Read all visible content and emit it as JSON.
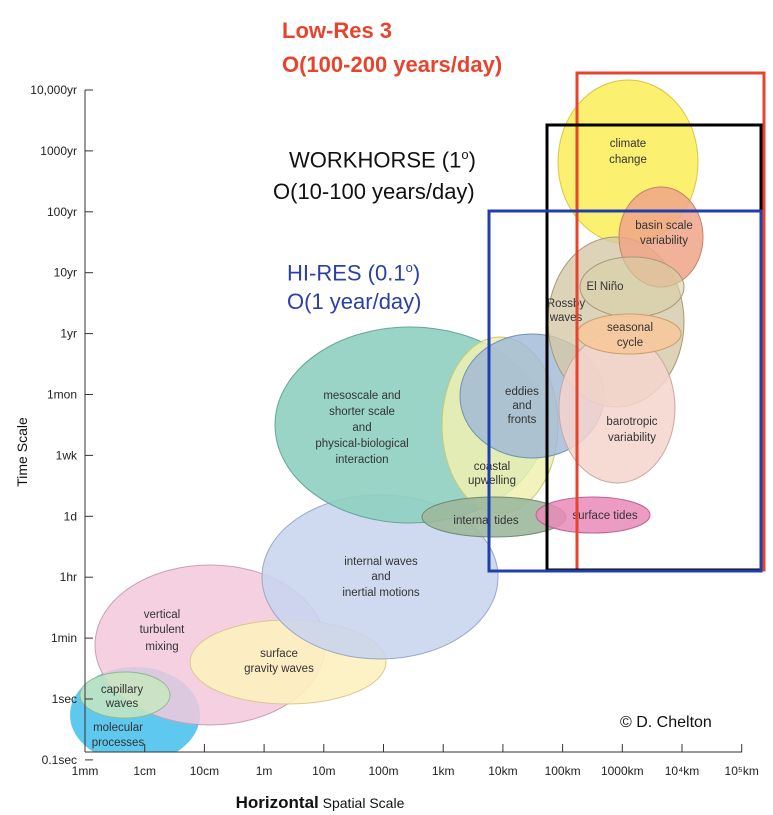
{
  "annotations": {
    "lowres_line1": "Low-Res 3",
    "lowres_line2": "O(100-200 years/day)",
    "workhorse_line1": "WORKHORSE (1",
    "workhorse_sup": "o",
    "workhorse_line1_end": ")",
    "workhorse_line2": "O(10-100 years/day)",
    "hires_line1": "HI-RES (0.1",
    "hires_sup": "o",
    "hires_line1_end": ")",
    "hires_line2": "O(1 year/day)"
  },
  "axes": {
    "y_title": "Time Scale",
    "x_title_bold": "Horizontal",
    "x_title_rest": " Spatial Scale",
    "y_ticks": [
      "10,000yr",
      "1000yr",
      "100yr",
      "10yr",
      "1yr",
      "1mon",
      "1wk",
      "1d",
      "1hr",
      "1min",
      "1sec",
      "0.1sec"
    ],
    "x_ticks": [
      "1mm",
      "1cm",
      "10cm",
      "1m",
      "10m",
      "100m",
      "1km",
      "10km",
      "100km",
      "1000km",
      "10⁴km",
      "10⁵km"
    ]
  },
  "credit": "© D. Chelton",
  "phenomena": [
    {
      "id": "molecular",
      "label": [
        "molecular",
        "processes"
      ],
      "color": "#5ec8ee"
    },
    {
      "id": "capillary",
      "label": [
        "capillary",
        "waves"
      ],
      "color": "#c8e6c0"
    },
    {
      "id": "turbulent",
      "label": [
        "vertical",
        "turbulent",
        "mixing"
      ],
      "color": "#f2c8dc"
    },
    {
      "id": "gravity",
      "label": [
        "surface",
        "gravity waves"
      ],
      "color": "#fdf0c0"
    },
    {
      "id": "internal-waves",
      "label": [
        "internal waves",
        "and",
        "inertial motions"
      ],
      "color": "#c8d4ee"
    },
    {
      "id": "mesoscale",
      "label": [
        "mesoscale and",
        "shorter scale",
        "and",
        "physical-biological",
        "interaction"
      ],
      "color": "#8fcfc0"
    },
    {
      "id": "upwelling",
      "label": [
        "coastal",
        "upwelling"
      ],
      "color": "#eef0b0"
    },
    {
      "id": "eddies",
      "label": [
        "eddies",
        "and",
        "fronts"
      ],
      "color": "#9fb8d8"
    },
    {
      "id": "internal-tides",
      "label": [
        "internal tides"
      ],
      "color": "#9cb89c"
    },
    {
      "id": "surface-tides",
      "label": [
        "surface tides"
      ],
      "color": "#e98ab8"
    },
    {
      "id": "climate",
      "label": [
        "climate",
        "change"
      ],
      "color": "#fbee60"
    },
    {
      "id": "basin",
      "label": [
        "basin scale",
        "variability"
      ],
      "color": "#f0a488"
    },
    {
      "id": "elnino",
      "label": [
        "El Niño"
      ],
      "color": "#d8d0a8"
    },
    {
      "id": "rossby",
      "label": [
        "Rossby",
        "waves"
      ],
      "color": "#d4c8a8"
    },
    {
      "id": "seasonal",
      "label": [
        "seasonal",
        "cycle"
      ],
      "color": "#f6c89c"
    },
    {
      "id": "barotropic",
      "label": [
        "barotropic",
        "variability"
      ],
      "color": "#f4d4cc"
    }
  ],
  "boxes": [
    {
      "id": "low-res-3",
      "color": "#e8432c"
    },
    {
      "id": "workhorse",
      "color": "#000000"
    },
    {
      "id": "hi-res",
      "color": "#1f3fb0"
    }
  ]
}
